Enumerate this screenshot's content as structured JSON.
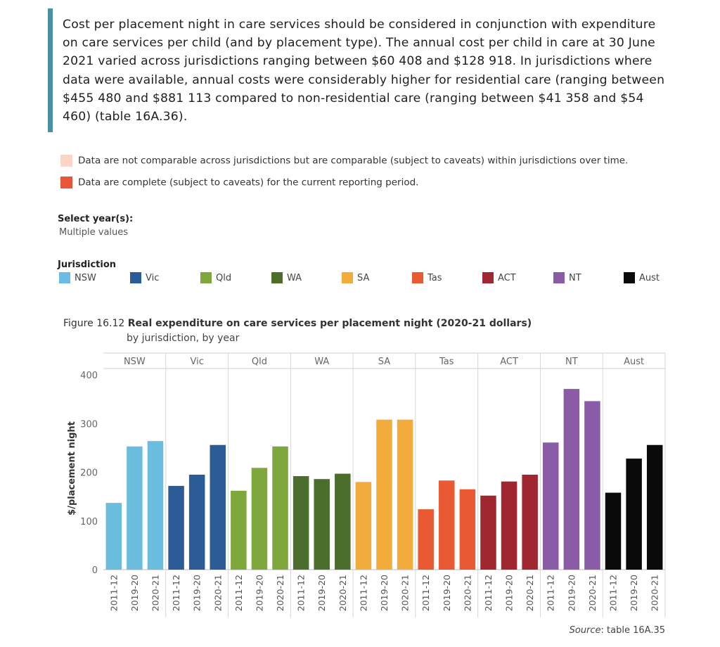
{
  "intro": {
    "text": "Cost per placement night in care services should be considered in conjunction with expenditure on care services per child (and by placement type). The annual cost per child in care at 30 June 2021 varied across jurisdictions ranging between $60 408 and $128 918. In jurisdictions where data were available, annual costs were considerably higher for residential care (ranging between $455 480 and $881 113 compared to non-residential care (ranging between $41 358 and $54 460) (table 16A.36)."
  },
  "status_legend": {
    "items": [
      {
        "label": "Data are not comparable across jurisdictions but are comparable (subject to caveats) within jurisdictions over time.",
        "color": "#fbd6c7"
      },
      {
        "label": "Data are complete (subject to caveats) for the current reporting period.",
        "color": "#e9553a"
      }
    ]
  },
  "year_filter": {
    "label": "Select year(s):",
    "value": "Multiple values"
  },
  "jurisdiction_legend": {
    "label": "Jurisdiction",
    "items": [
      {
        "name": "NSW",
        "color": "#6bbddf"
      },
      {
        "name": "Vic",
        "color": "#2b5c96"
      },
      {
        "name": "Qld",
        "color": "#7ea83c"
      },
      {
        "name": "WA",
        "color": "#4c6e2c"
      },
      {
        "name": "SA",
        "color": "#f2ac3c"
      },
      {
        "name": "Tas",
        "color": "#ea5a32"
      },
      {
        "name": "ACT",
        "color": "#a0272f"
      },
      {
        "name": "NT",
        "color": "#8a5ba6"
      },
      {
        "name": "Aust",
        "color": "#0a0a0a"
      }
    ]
  },
  "figure": {
    "number": "Figure 16.12",
    "title": "Real expenditure on care services per placement night (2020-21 dollars)",
    "subtitle": "by jurisdiction, by year"
  },
  "source": {
    "prefix": "Source",
    "text": ": table 16A.35"
  },
  "chart_data": {
    "type": "bar",
    "title": "Real expenditure on care services per placement night (2020-21 dollars)",
    "ylabel": "$/placement night",
    "xlabel": "",
    "ylim": [
      0,
      420
    ],
    "yticks": [
      0,
      100,
      200,
      300,
      400
    ],
    "grid": false,
    "years": [
      "2011-12",
      "2019-20",
      "2020-21"
    ],
    "panels": [
      {
        "name": "NSW",
        "color": "#6bbddf",
        "values": [
          137,
          253,
          264
        ]
      },
      {
        "name": "Vic",
        "color": "#2b5c96",
        "values": [
          172,
          195,
          256
        ]
      },
      {
        "name": "Qld",
        "color": "#7ea83c",
        "values": [
          162,
          209,
          253
        ]
      },
      {
        "name": "WA",
        "color": "#4c6e2c",
        "values": [
          192,
          186,
          197
        ]
      },
      {
        "name": "SA",
        "color": "#f2ac3c",
        "values": [
          180,
          308,
          308
        ]
      },
      {
        "name": "Tas",
        "color": "#ea5a32",
        "values": [
          124,
          183,
          165
        ]
      },
      {
        "name": "ACT",
        "color": "#a0272f",
        "values": [
          152,
          181,
          195
        ]
      },
      {
        "name": "NT",
        "color": "#8a5ba6",
        "values": [
          261,
          371,
          346
        ]
      },
      {
        "name": "Aust",
        "color": "#0a0a0a",
        "values": [
          158,
          228,
          256
        ]
      }
    ]
  }
}
